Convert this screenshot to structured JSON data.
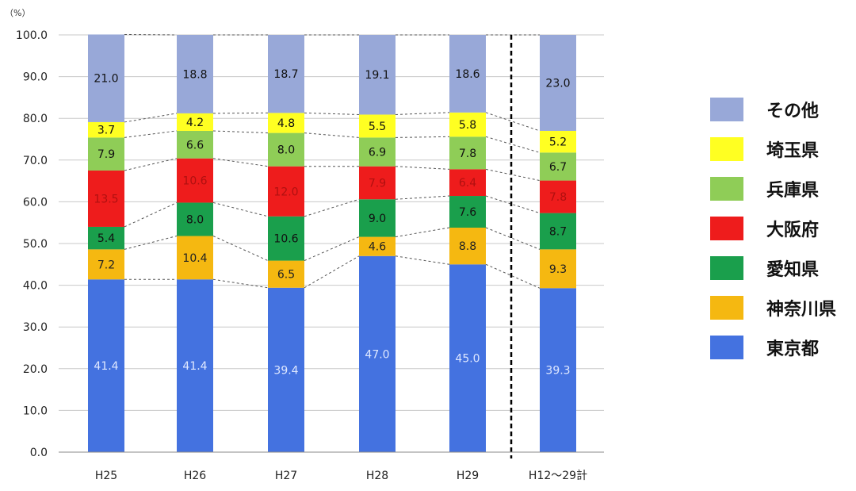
{
  "chart_data": {
    "type": "bar",
    "stacked": true,
    "unit_label": "（%）",
    "categories": [
      "H25",
      "H26",
      "H27",
      "H28",
      "H29",
      "H12～29計"
    ],
    "ylim": [
      0,
      100
    ],
    "yticks": [
      "0.0",
      "10.0",
      "20.0",
      "30.0",
      "40.0",
      "50.0",
      "60.0",
      "70.0",
      "80.0",
      "90.0",
      "100.0"
    ],
    "grid": true,
    "legend_position": "right",
    "series": [
      {
        "name": "東京都",
        "color": "#4472e0",
        "label_color": "#dfe8ff",
        "values": [
          41.4,
          41.4,
          39.4,
          47.0,
          45.0,
          39.3
        ],
        "labels": [
          "41.4",
          "41.4",
          "39.4",
          "47.0",
          "45.0",
          "39.3"
        ]
      },
      {
        "name": "神奈川県",
        "color": "#f5b811",
        "label_color": "#222222",
        "values": [
          7.2,
          10.4,
          6.5,
          4.6,
          8.8,
          9.3
        ],
        "labels": [
          "7.2",
          "10.4",
          "6.5",
          "4.6",
          "8.8",
          "9.3"
        ]
      },
      {
        "name": "愛知県",
        "color": "#1a9f4c",
        "label_color": "#111111",
        "values": [
          5.4,
          8.0,
          10.6,
          9.0,
          7.6,
          8.7
        ],
        "labels": [
          "5.4",
          "8.0",
          "10.6",
          "9.0",
          "7.6",
          "8.7"
        ]
      },
      {
        "name": "大阪府",
        "color": "#ee1c1c",
        "label_color": "#b01010",
        "values": [
          13.5,
          10.6,
          12.0,
          7.9,
          6.4,
          7.8
        ],
        "labels": [
          "13.5",
          "10.6",
          "12.0",
          "7.9",
          "6.4",
          "7.8"
        ]
      },
      {
        "name": "兵庫県",
        "color": "#8fcd57",
        "label_color": "#111111",
        "values": [
          7.9,
          6.6,
          8.0,
          6.9,
          7.8,
          6.7
        ],
        "labels": [
          "7.9",
          "6.6",
          "8.0",
          "6.9",
          "7.8",
          "6.7"
        ]
      },
      {
        "name": "埼玉県",
        "color": "#ffff22",
        "label_color": "#111111",
        "values": [
          3.7,
          4.2,
          4.8,
          5.5,
          5.8,
          5.2
        ],
        "labels": [
          "3.7",
          "4.2",
          "4.8",
          "5.5",
          "5.8",
          "5.2"
        ]
      },
      {
        "name": "その他",
        "color": "#98a8d8",
        "label_color": "#111111",
        "values": [
          21.0,
          18.8,
          18.7,
          19.1,
          18.6,
          23.0
        ],
        "labels": [
          "21.0",
          "18.8",
          "18.7",
          "19.1",
          "18.6",
          "23.0"
        ]
      }
    ],
    "legend_order": [
      "その他",
      "埼玉県",
      "兵庫県",
      "大阪府",
      "愛知県",
      "神奈川県",
      "東京都"
    ]
  }
}
